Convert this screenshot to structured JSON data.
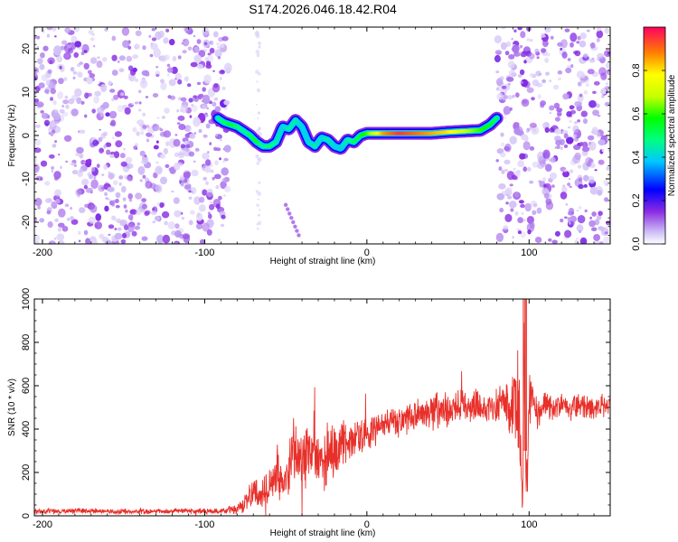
{
  "title": "S174.2026.046.18.42.R04",
  "chart_data": [
    {
      "type": "heatmap",
      "name": "spectrogram",
      "xlabel": "Height of straight line (km)",
      "ylabel": "Frequency (Hz)",
      "xlim": [
        -205,
        150
      ],
      "ylim": [
        -25,
        25
      ],
      "xticks": [
        -200,
        -100,
        0,
        100
      ],
      "xtick_labels": [
        "-200",
        "-100",
        "0",
        "100"
      ],
      "yticks": [
        -20,
        -10,
        0,
        10,
        20
      ],
      "ytick_labels": [
        "-20",
        "-10",
        "0",
        "10",
        "20"
      ],
      "noise_regions_km": [
        [
          -205,
          -85
        ],
        [
          80,
          150
        ]
      ],
      "ridge": {
        "x": [
          -92,
          -88,
          -84,
          -80,
          -76,
          -72,
          -68,
          -64,
          -60,
          -56,
          -52,
          -48,
          -44,
          -40,
          -36,
          -32,
          -28,
          -24,
          -20,
          -16,
          -12,
          -8,
          -4,
          0,
          10,
          20,
          30,
          40,
          50,
          60,
          70,
          76,
          80
        ],
        "y": [
          4.0,
          3.0,
          2.5,
          2.0,
          1.0,
          0.0,
          -1.5,
          -2.5,
          -2.5,
          -1.5,
          2.0,
          1.5,
          3.5,
          2.0,
          -1.5,
          -2.5,
          -0.5,
          -1.0,
          -2.5,
          -3.0,
          -1.0,
          -1.5,
          0.0,
          0.5,
          0.5,
          0.5,
          0.5,
          0.5,
          0.8,
          1.0,
          1.2,
          2.5,
          4.0
        ],
        "amplitude": [
          0.45,
          0.5,
          0.55,
          0.5,
          0.45,
          0.5,
          0.55,
          0.45,
          0.5,
          0.45,
          0.4,
          0.45,
          0.45,
          0.4,
          0.4,
          0.45,
          0.4,
          0.45,
          0.4,
          0.4,
          0.45,
          0.5,
          0.55,
          0.6,
          0.85,
          0.95,
          0.9,
          0.85,
          0.8,
          0.7,
          0.6,
          0.55,
          0.5
        ]
      },
      "streak": {
        "x": [
          -50,
          -42
        ],
        "y": [
          -16,
          -23
        ]
      },
      "colorbar": {
        "label": "Normalized spectral amplitude",
        "range": [
          0,
          1
        ],
        "ticks": [
          0.0,
          0.2,
          0.4,
          0.6,
          0.8
        ],
        "tick_labels": [
          "0.0",
          "0.2",
          "0.4",
          "0.6",
          "0.8"
        ]
      }
    },
    {
      "type": "line",
      "name": "snr",
      "xlabel": "Height of straight line (km)",
      "ylabel": "SNR (10 * v/v)",
      "xlim": [
        -205,
        150
      ],
      "ylim": [
        0,
        1000
      ],
      "xticks": [
        -200,
        -100,
        0,
        100
      ],
      "xtick_labels": [
        "-200",
        "-100",
        "0",
        "100"
      ],
      "yticks": [
        0,
        200,
        400,
        600,
        800,
        1000
      ],
      "ytick_labels": [
        "0",
        "200",
        "400",
        "600",
        "800",
        "1000"
      ],
      "series": [
        {
          "name": "SNR",
          "color": "#e8302a",
          "x": [
            -205,
            -190,
            -175,
            -160,
            -145,
            -130,
            -115,
            -100,
            -90,
            -80,
            -75,
            -70,
            -65,
            -60,
            -55,
            -50,
            -45,
            -40,
            -35,
            -30,
            -25,
            -20,
            -15,
            -10,
            -5,
            0,
            5,
            10,
            15,
            20,
            25,
            30,
            35,
            40,
            45,
            50,
            55,
            60,
            65,
            70,
            75,
            80,
            85,
            88,
            91,
            94,
            96,
            97,
            98,
            99,
            100,
            102,
            105,
            110,
            115,
            120,
            125,
            130,
            135,
            140,
            145,
            150
          ],
          "y": [
            22,
            20,
            24,
            18,
            21,
            19,
            23,
            20,
            22,
            30,
            60,
            110,
            90,
            150,
            220,
            120,
            320,
            180,
            360,
            250,
            280,
            300,
            330,
            350,
            370,
            380,
            400,
            415,
            430,
            440,
            455,
            465,
            470,
            480,
            490,
            495,
            500,
            505,
            510,
            505,
            500,
            520,
            530,
            490,
            560,
            420,
            50,
            860,
            300,
            180,
            520,
            600,
            470,
            520,
            490,
            510,
            495,
            505,
            500,
            495,
            500,
            510
          ],
          "amplitude": [
            14,
            12,
            13,
            12,
            12,
            11,
            12,
            12,
            12,
            25,
            40,
            60,
            70,
            90,
            120,
            110,
            150,
            150,
            170,
            150,
            130,
            110,
            100,
            90,
            80,
            80,
            70,
            70,
            70,
            75,
            75,
            80,
            80,
            80,
            80,
            75,
            75,
            70,
            70,
            70,
            70,
            75,
            90,
            120,
            200,
            260,
            60,
            250,
            200,
            140,
            120,
            90,
            70,
            60,
            55,
            55,
            55,
            55,
            55,
            55,
            55,
            55
          ]
        }
      ]
    }
  ]
}
